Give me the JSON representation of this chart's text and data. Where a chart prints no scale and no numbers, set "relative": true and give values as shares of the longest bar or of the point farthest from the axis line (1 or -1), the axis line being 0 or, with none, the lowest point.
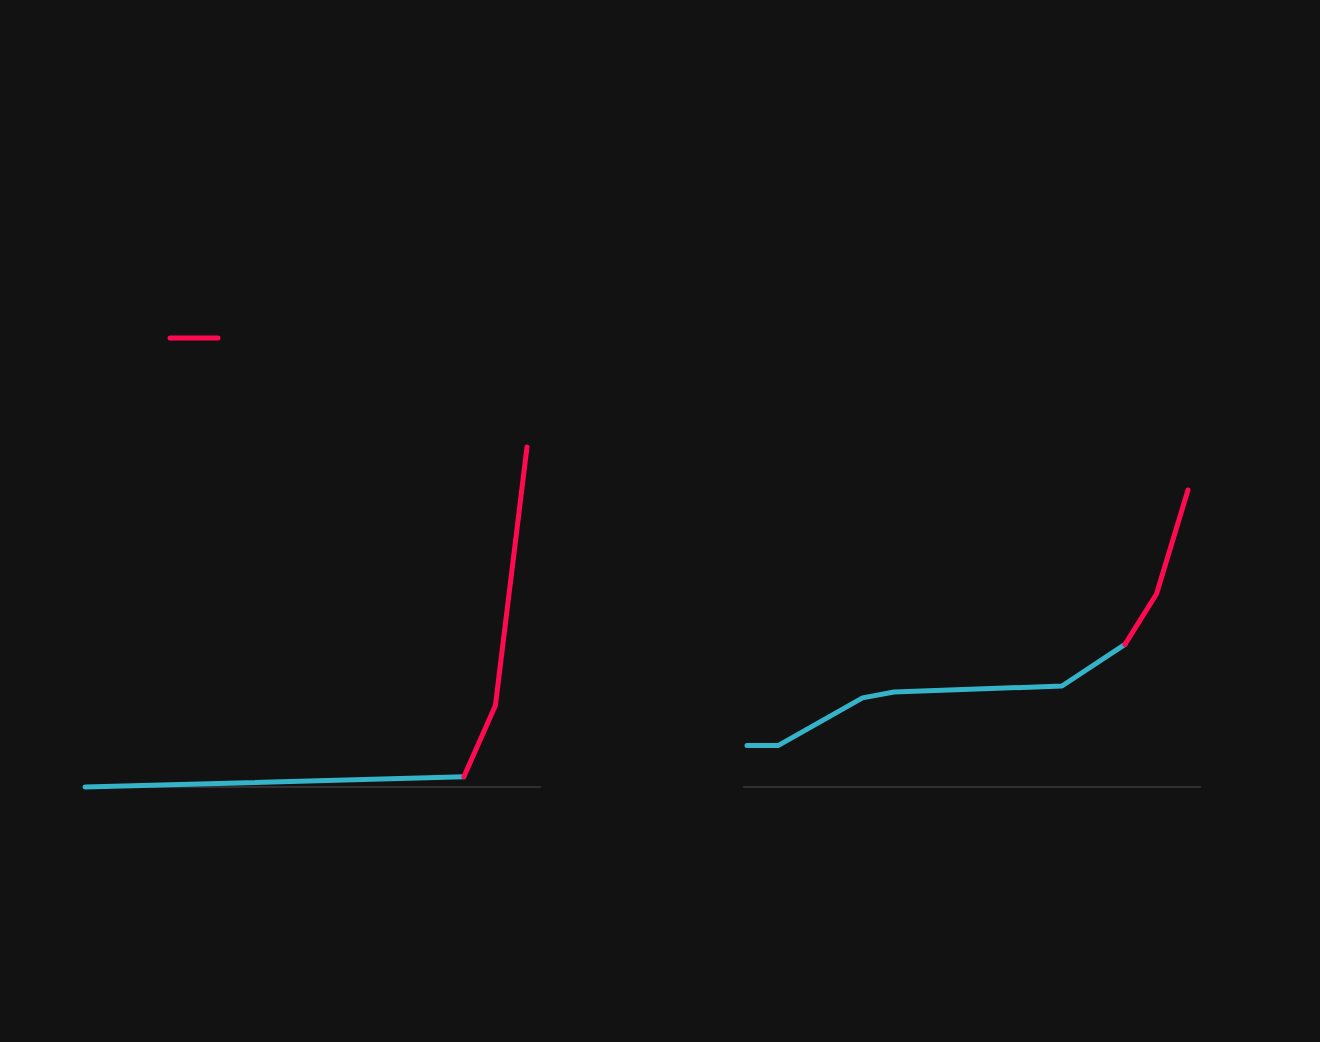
{
  "chart_data": [
    {
      "type": "line",
      "relative": true,
      "categories": [
        null,
        null,
        null,
        null,
        null,
        null,
        null,
        null,
        null,
        null,
        null,
        null,
        null,
        null,
        null,
        null,
        null,
        null,
        null,
        null,
        null,
        null,
        null,
        null,
        null,
        null,
        null,
        null,
        null,
        null,
        null,
        null,
        null,
        null,
        null,
        null,
        null,
        null,
        null,
        null,
        null,
        null,
        null
      ],
      "series": [
        {
          "color": "#35b3c8",
          "values": [
            0,
            null,
            null,
            null,
            null,
            null,
            null,
            null,
            null,
            null,
            null,
            null,
            null,
            null,
            null,
            null,
            null,
            null,
            null,
            null,
            null,
            null,
            null,
            null,
            null,
            null,
            null,
            null,
            null,
            null,
            null,
            null,
            null,
            null,
            null,
            null,
            0.03,
            null,
            null,
            null,
            null,
            null,
            null
          ]
        },
        {
          "color": "#ff0a50",
          "values": [
            null,
            null,
            null,
            null,
            null,
            null,
            null,
            null,
            null,
            null,
            null,
            null,
            null,
            null,
            null,
            null,
            null,
            null,
            null,
            null,
            null,
            null,
            null,
            null,
            null,
            null,
            null,
            null,
            null,
            null,
            null,
            null,
            null,
            null,
            null,
            null,
            0.03,
            null,
            null,
            0.24,
            null,
            null,
            1
          ]
        }
      ]
    },
    {
      "type": "line",
      "relative": true,
      "categories": [
        null,
        null,
        null,
        null,
        null,
        null,
        null,
        null,
        null,
        null,
        null,
        null,
        null,
        null,
        null,
        null,
        null,
        null,
        null,
        null,
        null,
        null,
        null,
        null,
        null,
        null,
        null,
        null,
        null,
        null,
        null,
        null,
        null,
        null,
        null,
        null,
        null,
        null,
        null,
        null,
        null,
        null,
        null
      ],
      "series": [
        {
          "color": "#35b3c8",
          "values": [
            0.14,
            null,
            null,
            0.14,
            null,
            null,
            null,
            null,
            null,
            null,
            null,
            0.3,
            null,
            null,
            0.32,
            null,
            null,
            null,
            null,
            null,
            null,
            null,
            null,
            null,
            null,
            null,
            null,
            null,
            null,
            null,
            0.34,
            null,
            null,
            null,
            null,
            null,
            0.48,
            null,
            null,
            null,
            null,
            null,
            null
          ]
        },
        {
          "color": "#ff0a50",
          "values": [
            null,
            null,
            null,
            null,
            null,
            null,
            null,
            null,
            null,
            null,
            null,
            null,
            null,
            null,
            null,
            null,
            null,
            null,
            null,
            null,
            null,
            null,
            null,
            null,
            null,
            null,
            null,
            null,
            null,
            null,
            null,
            null,
            null,
            null,
            null,
            null,
            0.48,
            null,
            null,
            0.65,
            null,
            null,
            1
          ]
        }
      ]
    }
  ]
}
